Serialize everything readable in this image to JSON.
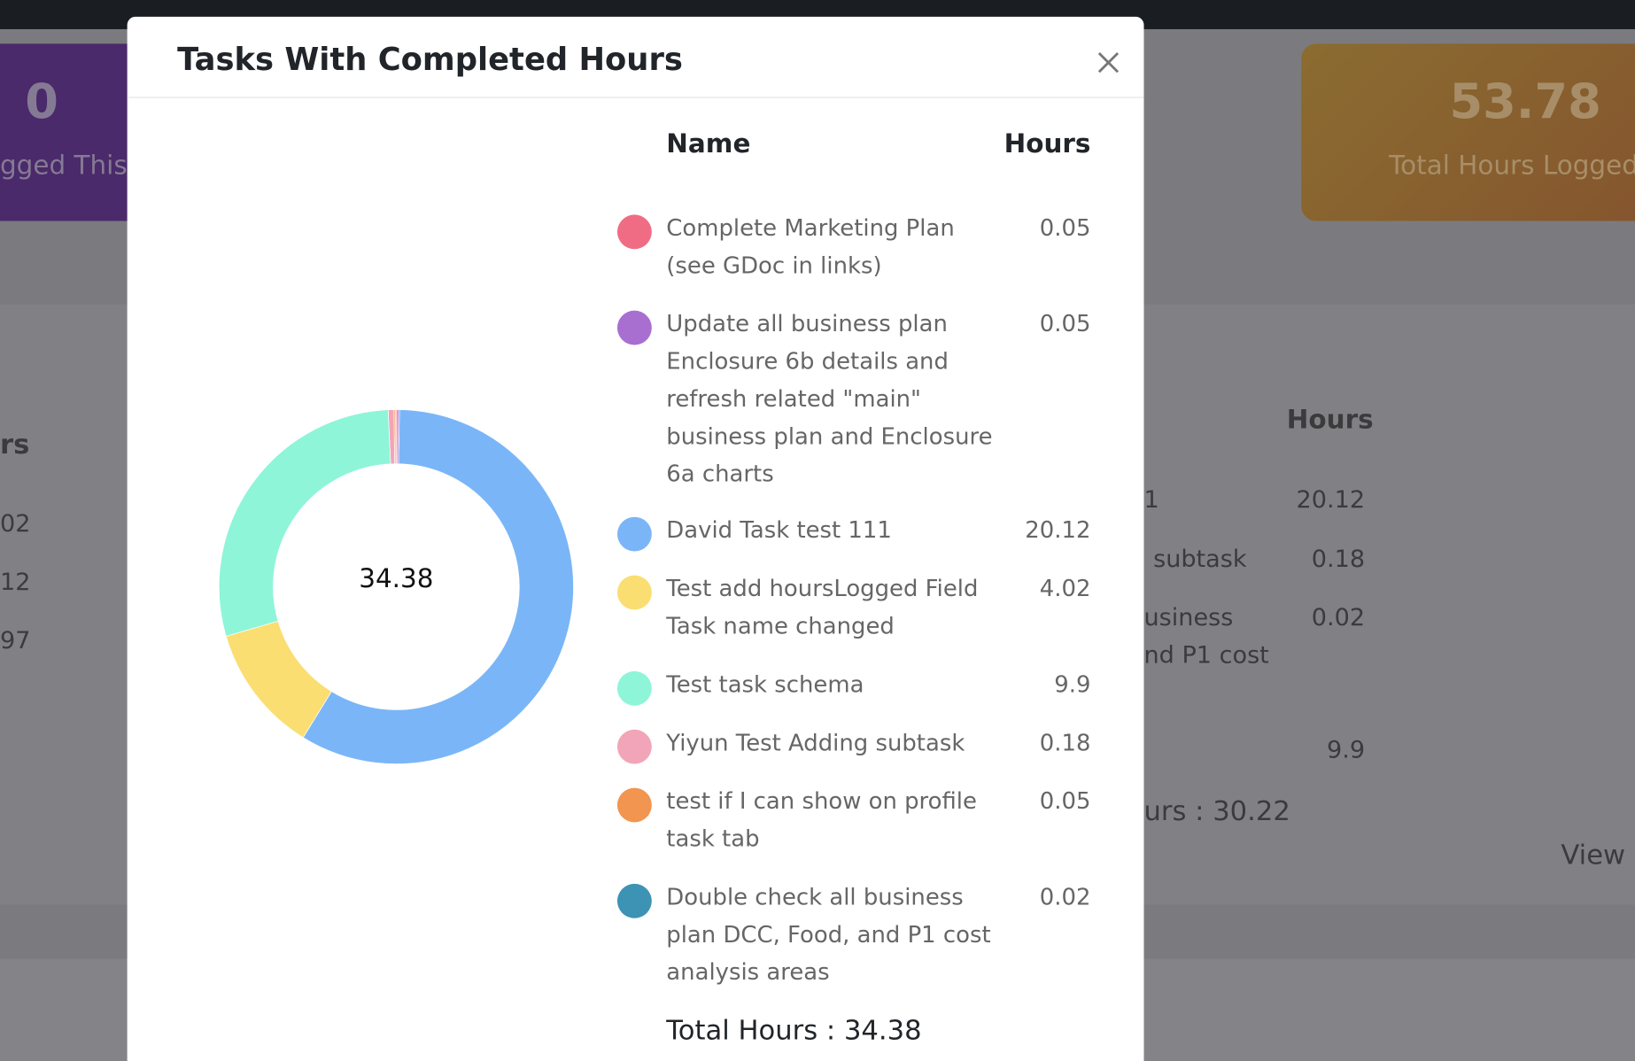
{
  "modal": {
    "title": "Tasks With Completed Hours",
    "name_header": "Name",
    "hours_header": "Hours",
    "total_label": "Total Hours : 34.38"
  },
  "chart_data": {
    "type": "doughnut",
    "center_label": "34.38",
    "categories": [
      "Complete Marketing Plan (see GDoc in links)",
      "Update all business plan Enclosure 6b details and refresh related \"main\" business plan and Enclosure 6a charts",
      "David Task test 111",
      "Test add hoursLogged Field Task name changed",
      "Test task schema",
      "Yiyun Test Adding subtask",
      "test if I can show on profile task tab",
      "Double check all business plan DCC, Food, and P1 cost analysis areas"
    ],
    "values": [
      0.05,
      0.05,
      20.12,
      4.02,
      9.9,
      0.18,
      0.05,
      0.02
    ],
    "colors": [
      "#f06c85",
      "#a86fd0",
      "#7ab6f7",
      "#fade72",
      "#8ef5d8",
      "#f2a5b8",
      "#f19550",
      "#3c93b3"
    ]
  },
  "background": {
    "left_card_value": "0",
    "left_card_label": "gged This",
    "right_card_value": "53.78",
    "right_card_label": "Total Hours Logged",
    "left_col": [
      "rs",
      "02",
      "12",
      "97"
    ],
    "right_header": "Hours",
    "right_names": [
      "1",
      "subtask",
      "usiness",
      "nd P1 cost"
    ],
    "right_values": [
      "20.12",
      "0.18",
      "0.02",
      "9.9"
    ],
    "right_total": "urs : 30.22",
    "view_link": "View a"
  }
}
